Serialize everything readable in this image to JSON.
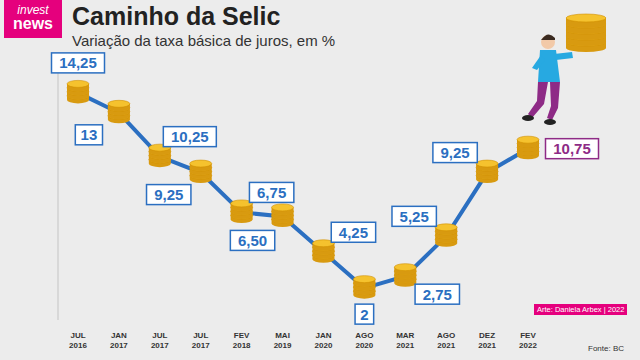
{
  "chart_data": {
    "type": "line",
    "logo": [
      "invest",
      "news"
    ],
    "title": "Caminho da Selic",
    "subtitle": "Variação da taxa básica de juros, em %",
    "categories": [
      "JUL 2016",
      "JAN 2017",
      "JUL 2017",
      "JUL 2017",
      "FEV 2018",
      "MAI 2019",
      "JAN 2020",
      "AGO 2020",
      "MAR 2021",
      "AGO 2021",
      "DEZ 2021",
      "FEV 2022"
    ],
    "values": [
      14.25,
      13,
      10.25,
      9.25,
      6.75,
      6.5,
      4.25,
      2,
      2.75,
      5.25,
      9.25,
      10.75
    ],
    "value_labels": [
      "14,25",
      "13",
      "10,25",
      "9,25",
      "6,75",
      "6,50",
      "4,25",
      "2",
      "2,75",
      "5,25",
      "9,25",
      "10,75"
    ],
    "data_labels": true,
    "color": "#2b6fc1",
    "ylim": [
      0,
      16
    ],
    "tick_labels": "x",
    "grid": false,
    "annotations": [
      "Arte: Daniela Arbex | 2022"
    ],
    "source": "Fonte: BC"
  }
}
